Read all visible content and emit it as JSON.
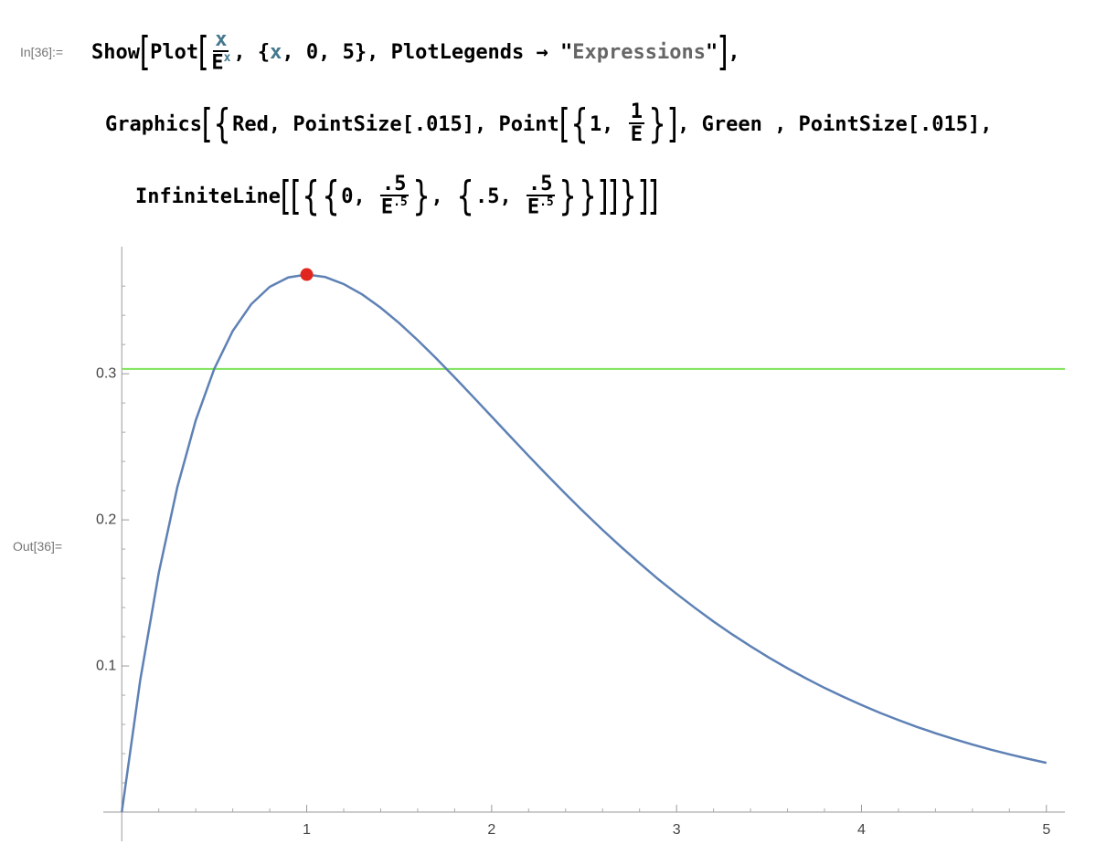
{
  "cell": {
    "in_label": "In[36]:=",
    "out_label": "Out[36]=",
    "lines": [
      [
        {
          "t": "Show"
        },
        {
          "big": "["
        },
        {
          "t": "Plot"
        },
        {
          "big": "["
        },
        {
          "num": "x",
          "den": "E",
          "sup": "x"
        },
        {
          "t": ", {"
        },
        {
          "var": "x"
        },
        {
          "t": ", 0, 5}, PlotLegends → \""
        },
        {
          "str": "Expressions"
        },
        {
          "t": "\""
        },
        {
          "big": "]"
        },
        {
          "t": ","
        }
      ],
      [
        {
          "t": "Graphics"
        },
        {
          "big": "["
        },
        {
          "big": "{"
        },
        {
          "t": "Red, PointSize[.015], Point"
        },
        {
          "big": "["
        },
        {
          "big": "{"
        },
        {
          "t": "1, "
        },
        {
          "num": "1",
          "den": "E"
        },
        {
          "big": "}"
        },
        {
          "big": "]"
        },
        {
          "t": ", Green , PointSize[.015],"
        }
      ],
      [
        {
          "t": "InfiniteLine"
        },
        {
          "big": "["
        },
        {
          "big": "["
        },
        {
          "big": "{"
        },
        {
          "big": "{"
        },
        {
          "t": "0, "
        },
        {
          "num": ".5",
          "den": "E",
          "sup": ".5"
        },
        {
          "big": "}"
        },
        {
          "t": ", "
        },
        {
          "big": "{"
        },
        {
          "t": ".5, "
        },
        {
          "num": ".5",
          "den": "E",
          "sup": ".5"
        },
        {
          "big": "}"
        },
        {
          "big": "}"
        },
        {
          "big": "]"
        },
        {
          "big": "]"
        },
        {
          "big": "}"
        },
        {
          "big": "]"
        },
        {
          "big": "]"
        }
      ]
    ]
  },
  "chart_data": {
    "type": "line",
    "x": [
      0,
      0.1,
      0.2,
      0.3,
      0.4,
      0.5,
      0.6,
      0.7,
      0.8,
      0.9,
      1,
      1.1,
      1.2,
      1.3,
      1.4,
      1.5,
      1.6,
      1.7,
      1.8,
      1.9,
      2,
      2.1,
      2.2,
      2.3,
      2.4,
      2.5,
      2.6,
      2.7,
      2.8,
      2.9,
      3,
      3.1,
      3.2,
      3.3,
      3.4,
      3.5,
      3.6,
      3.7,
      3.8,
      3.9,
      4,
      4.1,
      4.2,
      4.3,
      4.4,
      4.5,
      4.6,
      4.7,
      4.8,
      4.9,
      5
    ],
    "series": [
      {
        "color": "#5e81b5",
        "values": [
          0,
          0.0905,
          0.1637,
          0.2222,
          0.2681,
          0.3033,
          0.3293,
          0.3476,
          0.3595,
          0.3659,
          0.3679,
          0.3662,
          0.3614,
          0.3543,
          0.3452,
          0.3347,
          0.323,
          0.3106,
          0.2975,
          0.2842,
          0.2707,
          0.2572,
          0.2438,
          0.2306,
          0.2177,
          0.2052,
          0.1931,
          0.1815,
          0.1703,
          0.1595,
          0.1494,
          0.1397,
          0.1304,
          0.1217,
          0.1135,
          0.1057,
          0.0984,
          0.0915,
          0.085,
          0.079,
          0.0733,
          0.0679,
          0.063,
          0.0583,
          0.054,
          0.05,
          0.0462,
          0.0427,
          0.0395,
          0.0365,
          0.0337
        ]
      }
    ],
    "points": [
      {
        "x": 1,
        "y": 0.3679,
        "color": "#e0261f"
      }
    ],
    "hlines": [
      {
        "y": 0.3033,
        "color": "#7ee35a"
      }
    ],
    "xlim": [
      -0.1,
      5.1
    ],
    "ylim": [
      -0.02,
      0.387
    ],
    "xticks": [
      1,
      2,
      3,
      4,
      5
    ],
    "yticks": [
      0.1,
      0.2,
      0.3
    ],
    "xminorticks": [
      0.2,
      0.4,
      0.6,
      0.8,
      1.2,
      1.4,
      1.6,
      1.8,
      2.2,
      2.4,
      2.6,
      2.8,
      3.2,
      3.4,
      3.6,
      3.8,
      4.2,
      4.4,
      4.6,
      4.8
    ],
    "yminorticks": [
      0.02,
      0.04,
      0.06,
      0.08,
      0.12,
      0.14,
      0.16,
      0.18,
      0.22,
      0.24,
      0.26,
      0.28,
      0.32,
      0.34,
      0.36
    ]
  }
}
